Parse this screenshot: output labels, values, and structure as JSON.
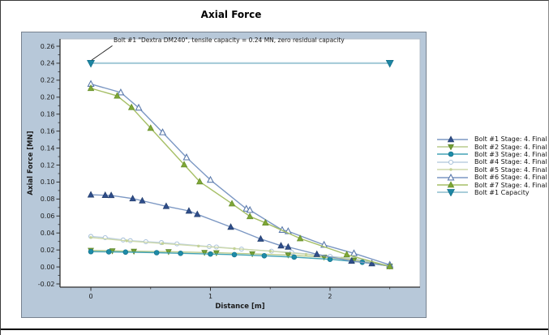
{
  "chart_data": {
    "type": "line",
    "title": "Axial Force",
    "xlabel": "Distance [m]",
    "ylabel": "Axial Force [MN]",
    "xlim": [
      -0.258,
      2.753
    ],
    "ylim": [
      -0.0238,
      0.2686
    ],
    "grid": false,
    "legend": {
      "position": "right"
    },
    "annotation": {
      "text": "Bolt #1 \"Dextra DM240\", tensile capacity = 0.24 MN, zero residual capacity",
      "points_to": [
        0,
        0.24
      ]
    },
    "x_ticks": [
      {
        "v": 0,
        "label": "0"
      },
      {
        "v": 1,
        "label": "1"
      },
      {
        "v": 2,
        "label": "2"
      }
    ],
    "x_minor_ticks": [
      0.5,
      1.5,
      2.5
    ],
    "y_ticks": [
      {
        "v": 0.26,
        "label": "0.26"
      },
      {
        "v": 0.24,
        "label": "0.24"
      },
      {
        "v": 0.22,
        "label": "0.22"
      },
      {
        "v": 0.2,
        "label": "0.20"
      },
      {
        "v": 0.18,
        "label": "0.18"
      },
      {
        "v": 0.16,
        "label": "0.16"
      },
      {
        "v": 0.14,
        "label": "0.14"
      },
      {
        "v": 0.12,
        "label": "0.12"
      },
      {
        "v": 0.1,
        "label": "0.10"
      },
      {
        "v": 0.08,
        "label": "0.08"
      },
      {
        "v": 0.06,
        "label": "0.06"
      },
      {
        "v": 0.04,
        "label": "0.04"
      },
      {
        "v": 0.02,
        "label": "0.02"
      },
      {
        "v": 0.0,
        "label": "0.00"
      },
      {
        "v": -0.02,
        "label": "-0.02"
      }
    ],
    "series": [
      {
        "name": "Bolt #1 Stage: 4. Final",
        "marker": "triangle-up",
        "line_color": "#7b97c3",
        "marker_fill": "#2f4e8c",
        "marker_stroke": "#26406f",
        "line_width": 1.4,
        "marker_at": "all",
        "msize": 1,
        "points": [
          [
            0,
            0.085
          ],
          [
            0.12,
            0.0845
          ],
          [
            0.17,
            0.0843
          ],
          [
            0.35,
            0.0805
          ],
          [
            0.43,
            0.078
          ],
          [
            0.63,
            0.0715
          ],
          [
            0.82,
            0.066
          ],
          [
            0.89,
            0.062
          ],
          [
            1.17,
            0.047
          ],
          [
            1.42,
            0.033
          ],
          [
            1.59,
            0.025
          ],
          [
            1.65,
            0.0235
          ],
          [
            1.89,
            0.015
          ],
          [
            2.18,
            0.007
          ],
          [
            2.35,
            0.004
          ],
          [
            2.5,
            0.001
          ]
        ]
      },
      {
        "name": "Bolt #2 Stage: 4. Final",
        "marker": "triangle-down",
        "line_color": "#b9cb8c",
        "marker_fill": "#74a038",
        "marker_stroke": "#5c8526",
        "line_width": 1.4,
        "marker_at": "all",
        "msize": 0.9,
        "points": [
          [
            0,
            0.0195
          ],
          [
            0.18,
            0.019
          ],
          [
            0.36,
            0.0185
          ],
          [
            0.65,
            0.018
          ],
          [
            0.95,
            0.017
          ],
          [
            1.05,
            0.0167
          ],
          [
            1.35,
            0.0155
          ],
          [
            1.65,
            0.014
          ],
          [
            1.95,
            0.0115
          ],
          [
            2.2,
            0.008
          ],
          [
            2.5,
            0.001
          ]
        ]
      },
      {
        "name": "Bolt #3 Stage: 4. Final",
        "marker": "circle",
        "line_color": "#43a3b5",
        "marker_fill": "#1e8ca8",
        "marker_stroke": "#16758f",
        "line_width": 1.4,
        "marker_at": "all",
        "msize": 1,
        "points": [
          [
            0,
            0.018
          ],
          [
            0.15,
            0.0178
          ],
          [
            0.29,
            0.0175
          ],
          [
            0.55,
            0.0168
          ],
          [
            0.75,
            0.016
          ],
          [
            1.0,
            0.0152
          ],
          [
            1.2,
            0.0145
          ],
          [
            1.45,
            0.0132
          ],
          [
            1.7,
            0.0116
          ],
          [
            2.0,
            0.009
          ],
          [
            2.27,
            0.0055
          ],
          [
            2.5,
            0.001
          ]
        ]
      },
      {
        "name": "Bolt #4 Stage: 4. Final",
        "marker": "circle-open",
        "line_color": "#bccfe1",
        "marker_fill": "#ffffff",
        "marker_stroke": "#a9c2da",
        "line_width": 1.4,
        "marker_at": "all",
        "msize": 1,
        "points": [
          [
            0,
            0.036
          ],
          [
            0.12,
            0.0345
          ],
          [
            0.27,
            0.0318
          ],
          [
            0.33,
            0.031
          ],
          [
            0.46,
            0.0297
          ],
          [
            0.59,
            0.0287
          ],
          [
            0.72,
            0.0272
          ],
          [
            0.99,
            0.024
          ],
          [
            1.05,
            0.0235
          ],
          [
            1.26,
            0.021
          ],
          [
            1.51,
            0.0186
          ],
          [
            1.68,
            0.017
          ],
          [
            2.0,
            0.0125
          ],
          [
            2.2,
            0.0095
          ],
          [
            2.5,
            0.0015
          ]
        ]
      },
      {
        "name": "Bolt #5 Stage: 4. Final",
        "marker": "dot",
        "line_color": "#cdd9ab",
        "marker_fill": "#c3d296",
        "marker_stroke": "#b4c87e",
        "line_width": 1.4,
        "marker_at": "all",
        "msize": 1,
        "points": [
          [
            0,
            0.0347
          ],
          [
            0.3,
            0.0308
          ],
          [
            0.6,
            0.0276
          ],
          [
            0.9,
            0.0246
          ],
          [
            1.2,
            0.0216
          ],
          [
            1.5,
            0.0186
          ],
          [
            1.8,
            0.0148
          ],
          [
            2.1,
            0.0104
          ],
          [
            2.5,
            0.001
          ]
        ]
      },
      {
        "name": "Bolt #6 Stage: 4. Final",
        "marker": "triangle-up-open",
        "line_color": "#7b97c3",
        "marker_fill": "#ffffff",
        "marker_stroke": "#5a79ab",
        "line_width": 1.4,
        "marker_at": "all",
        "msize": 1,
        "points": [
          [
            0,
            0.2155
          ],
          [
            0.25,
            0.2055
          ],
          [
            0.4,
            0.1875
          ],
          [
            0.6,
            0.1585
          ],
          [
            0.8,
            0.129
          ],
          [
            1.0,
            0.1025
          ],
          [
            1.3,
            0.0685
          ],
          [
            1.33,
            0.067
          ],
          [
            1.6,
            0.0435
          ],
          [
            1.65,
            0.042
          ],
          [
            1.95,
            0.026
          ],
          [
            2.2,
            0.016
          ],
          [
            2.5,
            0.0025
          ]
        ]
      },
      {
        "name": "Bolt #7 Stage: 4. Final",
        "marker": "triangle-up",
        "line_color": "#a6bf66",
        "marker_fill": "#7fa737",
        "marker_stroke": "#67902a",
        "line_width": 1.4,
        "marker_at": "all",
        "msize": 1,
        "points": [
          [
            0,
            0.2105
          ],
          [
            0.22,
            0.2015
          ],
          [
            0.34,
            0.188
          ],
          [
            0.5,
            0.1635
          ],
          [
            0.78,
            0.1205
          ],
          [
            0.91,
            0.1005
          ],
          [
            1.18,
            0.0745
          ],
          [
            1.33,
            0.0595
          ],
          [
            1.46,
            0.052
          ],
          [
            1.75,
            0.0335
          ],
          [
            2.14,
            0.0145
          ],
          [
            2.5,
            0.0005
          ]
        ]
      },
      {
        "name": "Bolt #1 Capacity",
        "marker": "triangle-down",
        "line_color": "#a9cdda",
        "marker_fill": "#1d86a4",
        "marker_stroke": "#14718c",
        "line_width": 2.2,
        "marker_at": "ends",
        "msize": 1.2,
        "points": [
          [
            0,
            0.24
          ],
          [
            2.5,
            0.24
          ]
        ]
      }
    ]
  },
  "colors": {
    "page_bg": "#ffffff",
    "panel_bg": "#b7c8d9",
    "panel_border": "#77828f",
    "plot_bg": "#ffffff",
    "plot_border": "#b3bdc9",
    "axis": "#2f2f2f",
    "text": "#1c1c1c"
  }
}
